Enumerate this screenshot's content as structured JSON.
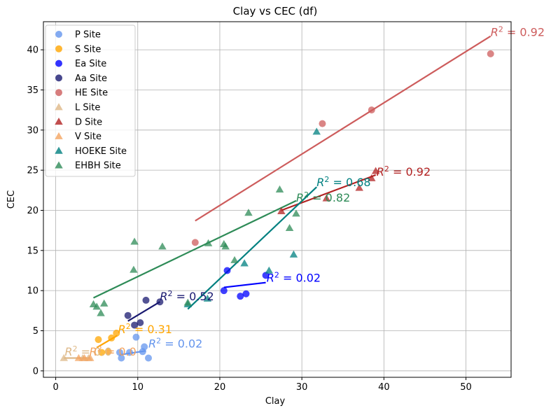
{
  "chart_data": {
    "type": "scatter",
    "title": "Clay vs CEC (df)",
    "xlabel": "Clay",
    "ylabel": "CEC",
    "xlim": [
      -1.5,
      55.5
    ],
    "ylim": [
      -0.8,
      43.5
    ],
    "xticks": [
      0,
      10,
      20,
      30,
      40,
      50
    ],
    "yticks": [
      0,
      5,
      10,
      15,
      20,
      25,
      30,
      35,
      40
    ],
    "grid": true,
    "legend_position": "top-left",
    "series": [
      {
        "name": "P Site",
        "color": "#6495ed",
        "marker": "circle",
        "points": [
          [
            7.8,
            2.3
          ],
          [
            8.0,
            1.6
          ],
          [
            9.8,
            4.2
          ],
          [
            10.8,
            3.0
          ],
          [
            11.3,
            1.6
          ],
          [
            10.6,
            2.4
          ],
          [
            9.0,
            2.3
          ]
        ],
        "fit": [
          [
            7.8,
            2.0
          ],
          [
            11.0,
            2.5
          ]
        ],
        "r2_label": "$R^2 = 0.02$",
        "r2_at": [
          11.3,
          2.9
        ]
      },
      {
        "name": "S Site",
        "color": "#ffa500",
        "marker": "circle",
        "points": [
          [
            5.2,
            3.9
          ],
          [
            5.6,
            2.3
          ],
          [
            6.4,
            2.4
          ],
          [
            6.8,
            4.1
          ],
          [
            7.4,
            4.7
          ]
        ],
        "fit": [
          [
            5.0,
            2.9
          ],
          [
            7.5,
            4.4
          ]
        ],
        "r2_label": "$R^2 = 0.31$",
        "r2_at": [
          7.6,
          4.7
        ]
      },
      {
        "name": "Ea Site",
        "color": "#0000ff",
        "marker": "circle",
        "points": [
          [
            20.5,
            10.0
          ],
          [
            20.9,
            12.5
          ],
          [
            22.5,
            9.3
          ],
          [
            23.2,
            9.6
          ],
          [
            25.6,
            11.9
          ]
        ],
        "fit": [
          [
            20.5,
            10.4
          ],
          [
            25.6,
            11.0
          ]
        ],
        "r2_label": "$R^2 = 0.02$",
        "r2_at": [
          25.7,
          11.1
        ]
      },
      {
        "name": "Aa Site",
        "color": "#191970",
        "marker": "circle",
        "points": [
          [
            8.8,
            6.9
          ],
          [
            9.6,
            5.7
          ],
          [
            10.3,
            6.0
          ],
          [
            11.0,
            8.8
          ],
          [
            12.7,
            8.6
          ]
        ],
        "fit": [
          [
            8.8,
            6.2
          ],
          [
            12.7,
            8.6
          ]
        ],
        "r2_label": "$R^2 = 0.52$",
        "r2_at": [
          12.7,
          8.8
        ]
      },
      {
        "name": "HE Site",
        "color": "#cd5c5c",
        "marker": "circle",
        "points": [
          [
            17.0,
            16.0
          ],
          [
            32.5,
            30.8
          ],
          [
            38.5,
            32.5
          ],
          [
            53.0,
            39.5
          ]
        ],
        "fit": [
          [
            17.0,
            18.7
          ],
          [
            53.0,
            41.7
          ]
        ],
        "r2_label": "$R^2 = 0.92$",
        "r2_at": [
          53.0,
          41.7
        ]
      },
      {
        "name": "L Site",
        "color": "#deb887",
        "marker": "triangle",
        "points": [
          [
            1.0,
            1.6
          ],
          [
            3.3,
            1.6
          ],
          [
            4.0,
            1.6
          ]
        ],
        "fit": [
          [
            1.0,
            1.6
          ],
          [
            4.0,
            1.6
          ]
        ],
        "r2_label": "$R^2 = 0.0$",
        "r2_at": [
          1.1,
          1.9
        ]
      },
      {
        "name": "D Site",
        "color": "#b22222",
        "marker": "triangle",
        "points": [
          [
            27.5,
            19.9
          ],
          [
            33.0,
            21.5
          ],
          [
            37.0,
            22.8
          ],
          [
            38.5,
            24.0
          ],
          [
            39.0,
            24.9
          ]
        ],
        "fit": [
          [
            27.5,
            20.0
          ],
          [
            39.0,
            24.4
          ]
        ],
        "r2_label": "$R^2 = 0.92$",
        "r2_at": [
          39.1,
          24.3
        ]
      },
      {
        "name": "V Site",
        "color": "#f4a460",
        "marker": "triangle",
        "points": [
          [
            2.8,
            1.6
          ],
          [
            3.5,
            1.6
          ],
          [
            4.2,
            1.6
          ]
        ],
        "fit": [
          [
            2.8,
            1.6
          ],
          [
            4.2,
            1.6
          ]
        ],
        "r2_label": "$R^2 = 0.0$",
        "r2_at": [
          4.1,
          1.9
        ]
      },
      {
        "name": "HOEKE Site",
        "color": "#008080",
        "marker": "triangle",
        "points": [
          [
            16.1,
            8.3
          ],
          [
            18.5,
            9.0
          ],
          [
            23.0,
            13.4
          ],
          [
            26.0,
            12.5
          ],
          [
            29.0,
            14.5
          ],
          [
            31.8,
            29.8
          ]
        ],
        "fit": [
          [
            16.1,
            7.7
          ],
          [
            31.8,
            22.9
          ]
        ],
        "r2_label": "$R^2 = 0.68$",
        "r2_at": [
          31.8,
          23.0
        ]
      },
      {
        "name": "EHBH Site",
        "color": "#2e8b57",
        "marker": "triangle",
        "points": [
          [
            4.6,
            8.3
          ],
          [
            5.0,
            8.0
          ],
          [
            5.5,
            7.2
          ],
          [
            5.9,
            8.4
          ],
          [
            9.5,
            12.6
          ],
          [
            9.6,
            16.1
          ],
          [
            13.0,
            15.5
          ],
          [
            16.1,
            8.5
          ],
          [
            18.6,
            15.9
          ],
          [
            20.5,
            15.8
          ],
          [
            20.7,
            15.5
          ],
          [
            21.8,
            13.8
          ],
          [
            23.5,
            19.7
          ],
          [
            27.3,
            22.6
          ],
          [
            28.5,
            17.8
          ],
          [
            29.3,
            19.6
          ]
        ],
        "fit": [
          [
            4.6,
            9.1
          ],
          [
            29.3,
            21.2
          ]
        ],
        "r2_label": "$R^2 = 0.82$",
        "r2_at": [
          29.3,
          21.1
        ]
      }
    ]
  },
  "legend_items": [
    {
      "label": "P Site",
      "color": "#6495ed",
      "marker": "circle"
    },
    {
      "label": "S Site",
      "color": "#ffa500",
      "marker": "circle"
    },
    {
      "label": "Ea Site",
      "color": "#0000ff",
      "marker": "circle"
    },
    {
      "label": "Aa Site",
      "color": "#191970",
      "marker": "circle"
    },
    {
      "label": "HE Site",
      "color": "#cd5c5c",
      "marker": "circle"
    },
    {
      "label": "L Site",
      "color": "#deb887",
      "marker": "triangle"
    },
    {
      "label": "D Site",
      "color": "#b22222",
      "marker": "triangle"
    },
    {
      "label": "V Site",
      "color": "#f4a460",
      "marker": "triangle"
    },
    {
      "label": "HOEKE Site",
      "color": "#008080",
      "marker": "triangle"
    },
    {
      "label": "EHBH Site",
      "color": "#2e8b57",
      "marker": "triangle"
    }
  ]
}
